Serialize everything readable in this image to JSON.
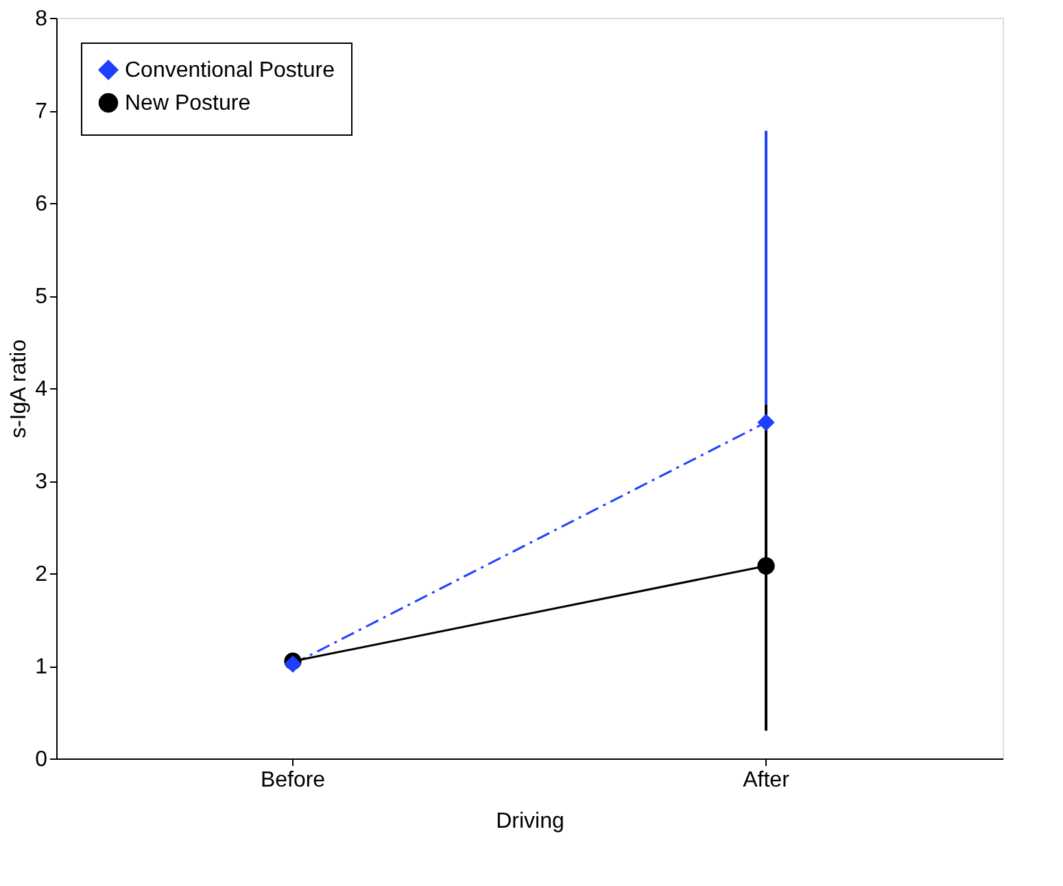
{
  "chart_data": {
    "type": "line",
    "xlabel": "Driving",
    "ylabel": "s-IgA ratio",
    "categories": [
      "Before",
      "After"
    ],
    "ylim": [
      0,
      8
    ],
    "yticks": [
      0,
      1,
      2,
      3,
      4,
      5,
      6,
      7,
      8
    ],
    "grid": false,
    "legend": "top left",
    "series": [
      {
        "name": "Conventional Posture",
        "color": "#1f3fff",
        "values": [
          1.02,
          3.63
        ],
        "errors": [
          null,
          [
            0.47,
            6.78
          ]
        ],
        "marker": "diamond",
        "line_style": "dashed"
      },
      {
        "name": "New Posture",
        "color": "#000000",
        "values": [
          1.05,
          2.08
        ],
        "errors": [
          null,
          [
            0.3,
            3.82
          ]
        ],
        "marker": "circle",
        "line_style": "solid"
      }
    ]
  }
}
